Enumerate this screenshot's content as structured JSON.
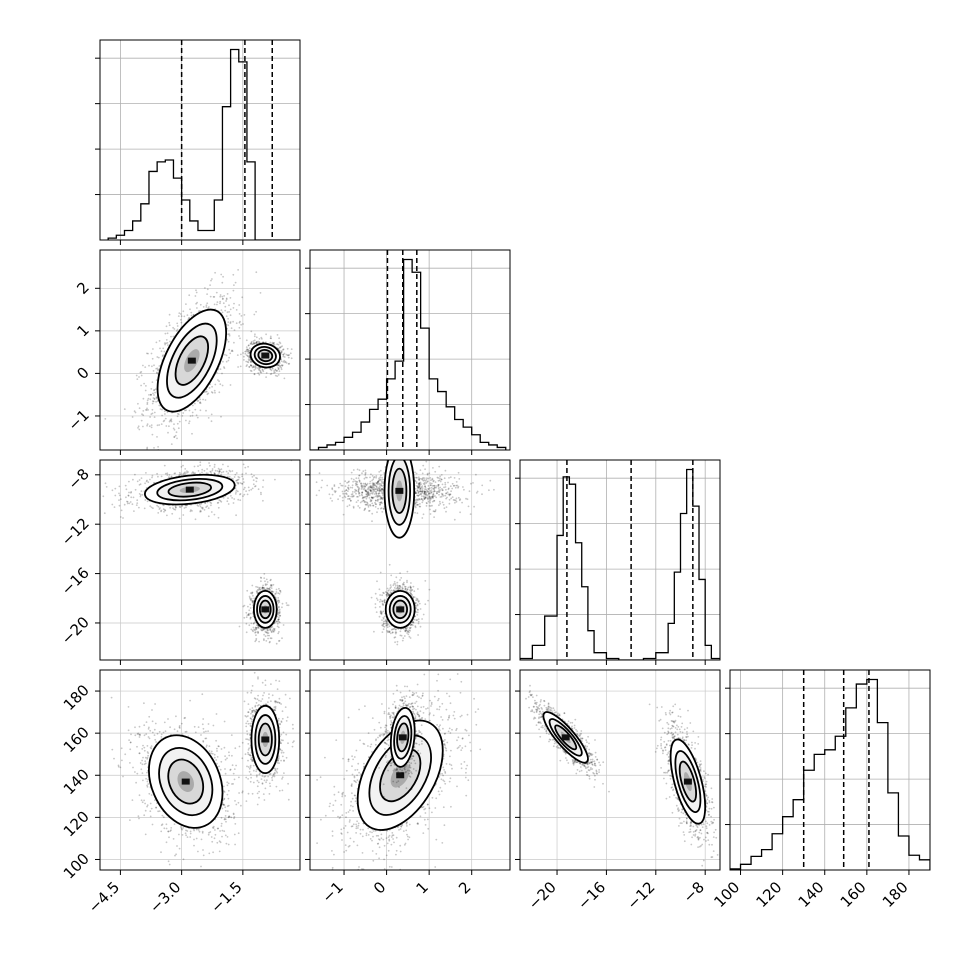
{
  "chart_data": {
    "type": "corner",
    "title": "",
    "parameters": [
      {
        "index": 0,
        "range": [
          -5.0,
          -0.1
        ],
        "ticks": [
          -4.5,
          -3.0,
          -1.5
        ],
        "tick_labels": [
          "−4.5",
          "−3.0",
          "−1.5"
        ],
        "quantiles": [
          -3.0,
          -1.45,
          -0.78
        ]
      },
      {
        "index": 1,
        "range": [
          -1.8,
          2.9
        ],
        "ticks": [
          -1,
          0,
          1,
          2
        ],
        "tick_labels": [
          "−1",
          "0",
          "1",
          "2"
        ],
        "quantiles": [
          0.02,
          0.38,
          0.71
        ]
      },
      {
        "index": 2,
        "range": [
          -23.0,
          -6.8
        ],
        "ticks": [
          -20,
          -16,
          -12,
          -8
        ],
        "tick_labels": [
          "−20",
          "−16",
          "−12",
          "−8"
        ],
        "quantiles": [
          -19.2,
          -14.0,
          -9.0
        ]
      },
      {
        "index": 3,
        "range": [
          95,
          190
        ],
        "ticks": [
          100,
          120,
          140,
          160,
          180
        ],
        "tick_labels": [
          "100",
          "120",
          "140",
          "160",
          "180"
        ],
        "quantiles": [
          130,
          149,
          161
        ]
      }
    ],
    "histograms": [
      {
        "param": 0,
        "bins": [
          -4.8,
          -4.6,
          -4.4,
          -4.2,
          -4.0,
          -3.8,
          -3.6,
          -3.4,
          -3.2,
          -3.0,
          -2.8,
          -2.6,
          -2.4,
          -2.2,
          -2.0,
          -1.8,
          -1.6,
          -1.4,
          -1.2,
          -1.0,
          -0.8,
          -0.6,
          -0.4,
          -0.2
        ],
        "counts": [
          2,
          5,
          10,
          20,
          38,
          72,
          82,
          84,
          65,
          42,
          20,
          10,
          10,
          42,
          140,
          200,
          187,
          82,
          0,
          0,
          0,
          0,
          0,
          0
        ]
      },
      {
        "param": 1,
        "bins": [
          -1.8,
          -1.6,
          -1.4,
          -1.2,
          -1.0,
          -0.8,
          -0.6,
          -0.4,
          -0.2,
          0.0,
          0.2,
          0.4,
          0.6,
          0.8,
          1.0,
          1.2,
          1.4,
          1.6,
          1.8,
          2.0,
          2.2,
          2.4,
          2.6
        ],
        "counts": [
          0,
          1,
          2,
          3,
          5,
          7,
          11,
          16,
          20,
          28,
          35,
          75,
          70,
          48,
          28,
          23,
          17,
          12,
          9,
          6,
          3,
          2,
          1
        ]
      },
      {
        "param": 2,
        "bins": [
          -23.0,
          -22.0,
          -21.0,
          -20.0,
          -19.5,
          -19.0,
          -18.5,
          -18.0,
          -17.5,
          -17.0,
          -16.0,
          -15.0,
          -14.0,
          -13.0,
          -12.0,
          -11.0,
          -10.5,
          -10.0,
          -9.5,
          -9.0,
          -8.5,
          -8.0,
          -7.5
        ],
        "counts": [
          1,
          10,
          30,
          85,
          125,
          120,
          80,
          50,
          20,
          5,
          1,
          0,
          0,
          1,
          5,
          25,
          60,
          100,
          130,
          105,
          55,
          10,
          1
        ]
      },
      {
        "param": 3,
        "bins": [
          95,
          100,
          105,
          110,
          115,
          120,
          125,
          130,
          135,
          140,
          145,
          150,
          155,
          160,
          165,
          170,
          175,
          180,
          185
        ],
        "counts": [
          1,
          5,
          12,
          18,
          32,
          47,
          62,
          88,
          102,
          106,
          118,
          143,
          164,
          168,
          130,
          68,
          30,
          13,
          9
        ]
      }
    ],
    "panels_2d": [
      {
        "x": 0,
        "y": 1,
        "modes": [
          {
            "cx": -2.75,
            "cy": 0.3,
            "sx": 0.42,
            "sy": 0.6,
            "rho": 0.55,
            "n": 1400
          },
          {
            "cx": -0.95,
            "cy": 0.42,
            "sx": 0.18,
            "sy": 0.14,
            "rho": -0.1,
            "n": 900
          }
        ]
      },
      {
        "x": 0,
        "y": 2,
        "modes": [
          {
            "cx": -2.8,
            "cy": -9.2,
            "sx": 0.55,
            "sy": 0.6,
            "rho": 0.3,
            "n": 1200
          },
          {
            "cx": -0.95,
            "cy": -18.9,
            "sx": 0.14,
            "sy": 0.75,
            "rho": 0.0,
            "n": 1000
          }
        ]
      },
      {
        "x": 0,
        "y": 3,
        "modes": [
          {
            "cx": -2.9,
            "cy": 137,
            "sx": 0.45,
            "sy": 11,
            "rho": -0.25,
            "n": 1300
          },
          {
            "cx": -0.95,
            "cy": 157,
            "sx": 0.17,
            "sy": 8,
            "rho": 0.0,
            "n": 1000
          }
        ]
      },
      {
        "x": 1,
        "y": 2,
        "modes": [
          {
            "cx": 0.3,
            "cy": -9.3,
            "sx": 0.55,
            "sy": 0.6,
            "rho": 0.0,
            "n": 1200
          },
          {
            "cx": 0.32,
            "cy": -18.9,
            "sx": 0.17,
            "sy": 0.75,
            "rho": 0.0,
            "n": 1000
          }
        ]
      },
      {
        "x": 1,
        "y": 3,
        "modes": [
          {
            "cx": 0.32,
            "cy": 140,
            "sx": 0.5,
            "sy": 13,
            "rho": 0.45,
            "n": 1500
          },
          {
            "cx": 0.38,
            "cy": 158,
            "sx": 0.14,
            "sy": 7,
            "rho": 0.2,
            "n": 800
          }
        ]
      },
      {
        "x": 2,
        "y": 3,
        "modes": [
          {
            "cx": -19.3,
            "cy": 158,
            "sx": 0.9,
            "sy": 6,
            "rho": -0.85,
            "n": 1200
          },
          {
            "cx": -9.4,
            "cy": 137,
            "sx": 0.7,
            "sy": 10,
            "rho": -0.6,
            "n": 1300
          }
        ]
      }
    ],
    "grid": true,
    "contour_levels": 3
  }
}
